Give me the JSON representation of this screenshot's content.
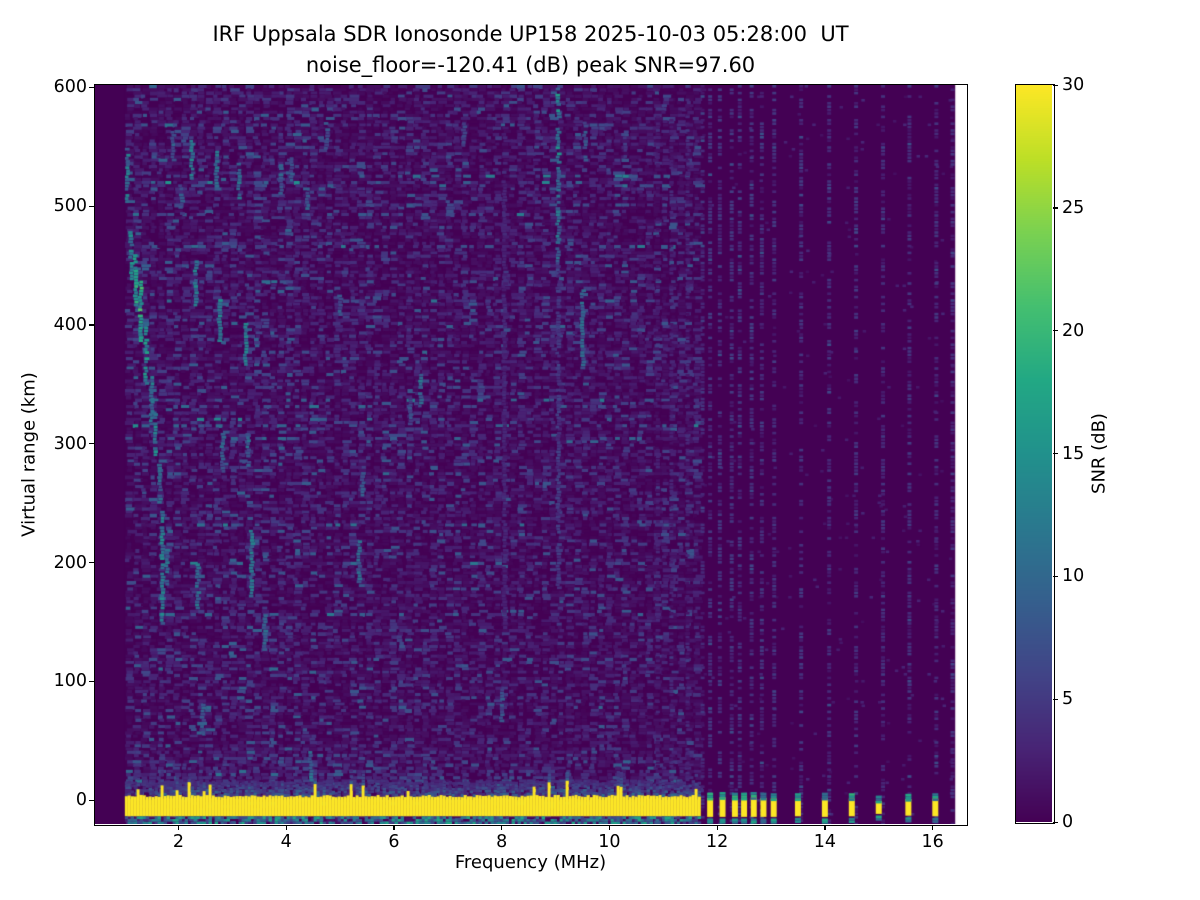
{
  "title": {
    "line1": "IRF Uppsala SDR Ionosonde UP158 2025-10-03 05:28:00  UT",
    "line2": "noise_floor=-120.41 (dB) peak SNR=97.60"
  },
  "axes": {
    "xlabel": "Frequency (MHz)",
    "ylabel": "Virtual range (km)",
    "x_ticks": [
      2,
      4,
      6,
      8,
      10,
      12,
      14,
      16
    ],
    "y_ticks": [
      0,
      100,
      200,
      300,
      400,
      500,
      600
    ]
  },
  "colorbar": {
    "label": "SNR (dB)",
    "ticks": [
      0,
      5,
      10,
      15,
      20,
      25,
      30
    ],
    "min_db": 0,
    "max_db": 30,
    "colormap": "viridis",
    "low_color": "#440154",
    "high_color": "#fde725"
  },
  "chart_data": {
    "type": "heatmap",
    "title": "IRF Uppsala SDR Ionosonde UP158 2025-10-03 05:28:00  UT",
    "subtitle": "noise_floor=-120.41 (dB) peak SNR=97.60",
    "station": "UP158",
    "datetime_ut": "2025-10-03 05:28:00",
    "noise_floor_db": -120.41,
    "peak_snr_db": 97.6,
    "xlabel": "Frequency (MHz)",
    "ylabel": "Virtual range (km)",
    "colorbar_label": "SNR (dB)",
    "xlim_mhz": [
      0.45,
      16.62
    ],
    "ylim_km": [
      -20,
      602
    ],
    "snr_range_db": [
      0,
      30
    ],
    "colormap": "viridis",
    "sweep_start_mhz": 1.0,
    "data_end_mhz": 16.42,
    "ground_pulse": {
      "f0": 1.0,
      "f1": 11.65,
      "km_lo": -13.5,
      "km_hi": 2.5,
      "snr": 30
    },
    "ground_pulse_blips": [
      [
        11.87,
        -14,
        2
      ],
      [
        12.1,
        -14,
        2.5
      ],
      [
        12.33,
        -14,
        2
      ],
      [
        12.5,
        -14,
        2
      ],
      [
        12.68,
        -14,
        2.5
      ],
      [
        12.86,
        -14,
        2
      ],
      [
        13.05,
        -14,
        1.5
      ],
      [
        13.5,
        -13.5,
        1.5
      ],
      [
        14.0,
        -14,
        2
      ],
      [
        14.5,
        -13.5,
        1.5
      ],
      [
        15.0,
        -11.5,
        -0.5
      ],
      [
        15.55,
        -13,
        1
      ],
      [
        16.05,
        -13.5,
        1.5
      ]
    ],
    "rfi_columns": [
      [
        10.9,
        0.4
      ],
      [
        11.15,
        0.45
      ],
      [
        11.45,
        0.5
      ],
      [
        11.73,
        0.8
      ],
      [
        11.87,
        1.0
      ],
      [
        12.05,
        1.0
      ],
      [
        12.27,
        1.0
      ],
      [
        12.42,
        1.0
      ],
      [
        12.64,
        1.0
      ],
      [
        12.83,
        1.0
      ],
      [
        13.06,
        0.95
      ],
      [
        13.56,
        0.9
      ],
      [
        14.08,
        0.9
      ],
      [
        14.58,
        0.9
      ],
      [
        15.08,
        0.85
      ],
      [
        15.57,
        0.85
      ],
      [
        16.07,
        0.85
      ],
      [
        16.37,
        0.8
      ]
    ],
    "echo_streaks": [
      [
        1.05,
        505,
        550,
        13
      ],
      [
        1.12,
        440,
        480,
        15
      ],
      [
        1.2,
        418,
        462,
        19
      ],
      [
        1.3,
        388,
        438,
        21
      ],
      [
        1.4,
        352,
        402,
        17
      ],
      [
        1.5,
        318,
        358,
        13
      ],
      [
        1.57,
        292,
        328,
        15
      ],
      [
        1.65,
        252,
        285,
        11
      ],
      [
        1.7,
        150,
        245,
        14
      ],
      [
        1.78,
        183,
        214,
        12
      ],
      [
        1.9,
        540,
        565,
        10
      ],
      [
        2.05,
        495,
        520,
        9
      ],
      [
        2.25,
        522,
        558,
        14
      ],
      [
        2.32,
        418,
        455,
        15
      ],
      [
        2.36,
        163,
        200,
        13
      ],
      [
        2.45,
        58,
        86,
        10
      ],
      [
        2.7,
        518,
        548,
        12
      ],
      [
        2.76,
        388,
        424,
        15
      ],
      [
        2.82,
        278,
        310,
        11
      ],
      [
        3.12,
        508,
        538,
        12
      ],
      [
        3.25,
        368,
        404,
        14
      ],
      [
        3.3,
        283,
        310,
        11
      ],
      [
        3.36,
        173,
        228,
        13
      ],
      [
        3.6,
        128,
        158,
        11
      ],
      [
        3.9,
        512,
        538,
        10
      ],
      [
        4.1,
        523,
        545,
        9
      ],
      [
        4.4,
        494,
        514,
        10
      ],
      [
        4.45,
        18,
        44,
        12
      ],
      [
        4.75,
        550,
        572,
        8
      ],
      [
        5.0,
        410,
        428,
        9
      ],
      [
        5.35,
        185,
        220,
        12
      ],
      [
        5.42,
        258,
        284,
        9
      ],
      [
        6.3,
        318,
        340,
        8
      ],
      [
        6.5,
        333,
        360,
        12
      ],
      [
        7.3,
        555,
        575,
        7
      ],
      [
        8.0,
        68,
        95,
        9
      ],
      [
        8.05,
        150,
        540,
        4
      ],
      [
        9.05,
        540,
        600,
        16
      ],
      [
        9.05,
        455,
        540,
        12
      ],
      [
        9.05,
        180,
        455,
        6
      ],
      [
        9.5,
        365,
        435,
        11
      ],
      [
        9.55,
        540,
        575,
        9
      ],
      [
        10.3,
        543,
        566,
        7
      ]
    ]
  }
}
